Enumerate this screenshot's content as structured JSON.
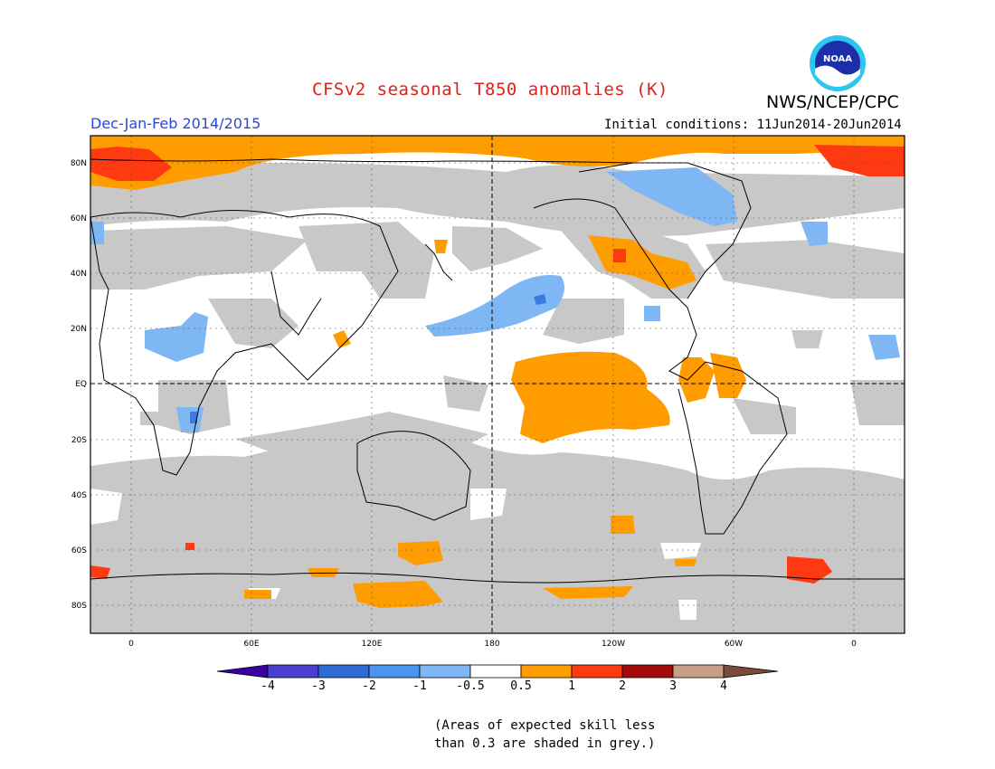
{
  "header": {
    "title": "CFSv2 seasonal T850 anomalies (K)",
    "organization": "NWS/NCEP/CPC",
    "season": "Dec-Jan-Feb 2014/2015",
    "initial_conditions": "Initial conditions: 11Jun2014-20Jun2014"
  },
  "logo": {
    "text": "NOAA",
    "icon": "noaa-logo-icon"
  },
  "map": {
    "lat_labels": [
      "80N",
      "60N",
      "40N",
      "20N",
      "EQ",
      "20S",
      "40S",
      "60S",
      "80S"
    ],
    "lon_labels": [
      "0",
      "60E",
      "120E",
      "180",
      "120W",
      "60W",
      "0"
    ]
  },
  "colorbar": {
    "labels": [
      "-4",
      "-3",
      "-2",
      "-1",
      "-0.5",
      "0.5",
      "1",
      "2",
      "3",
      "4"
    ],
    "colors": [
      "#3a00a0",
      "#4a3fd0",
      "#2e6bd8",
      "#4b94f0",
      "#7fb6f4",
      "#ffffff",
      "#ff9d00",
      "#ff3a10",
      "#a50a0a",
      "#c8a08a",
      "#7a4a3a"
    ]
  },
  "footnote": {
    "line1": "(Areas of expected skill less",
    "line2": "than 0.3 are shaded in grey.)"
  },
  "palette": {
    "grey": "#c8c8c8",
    "orange": "#ff9d00",
    "red": "#ff3a10",
    "blue": "#6aaaf4",
    "darkblue": "#3a7be0",
    "title_red": "#e0201a",
    "season_blue": "#2a47d8"
  }
}
